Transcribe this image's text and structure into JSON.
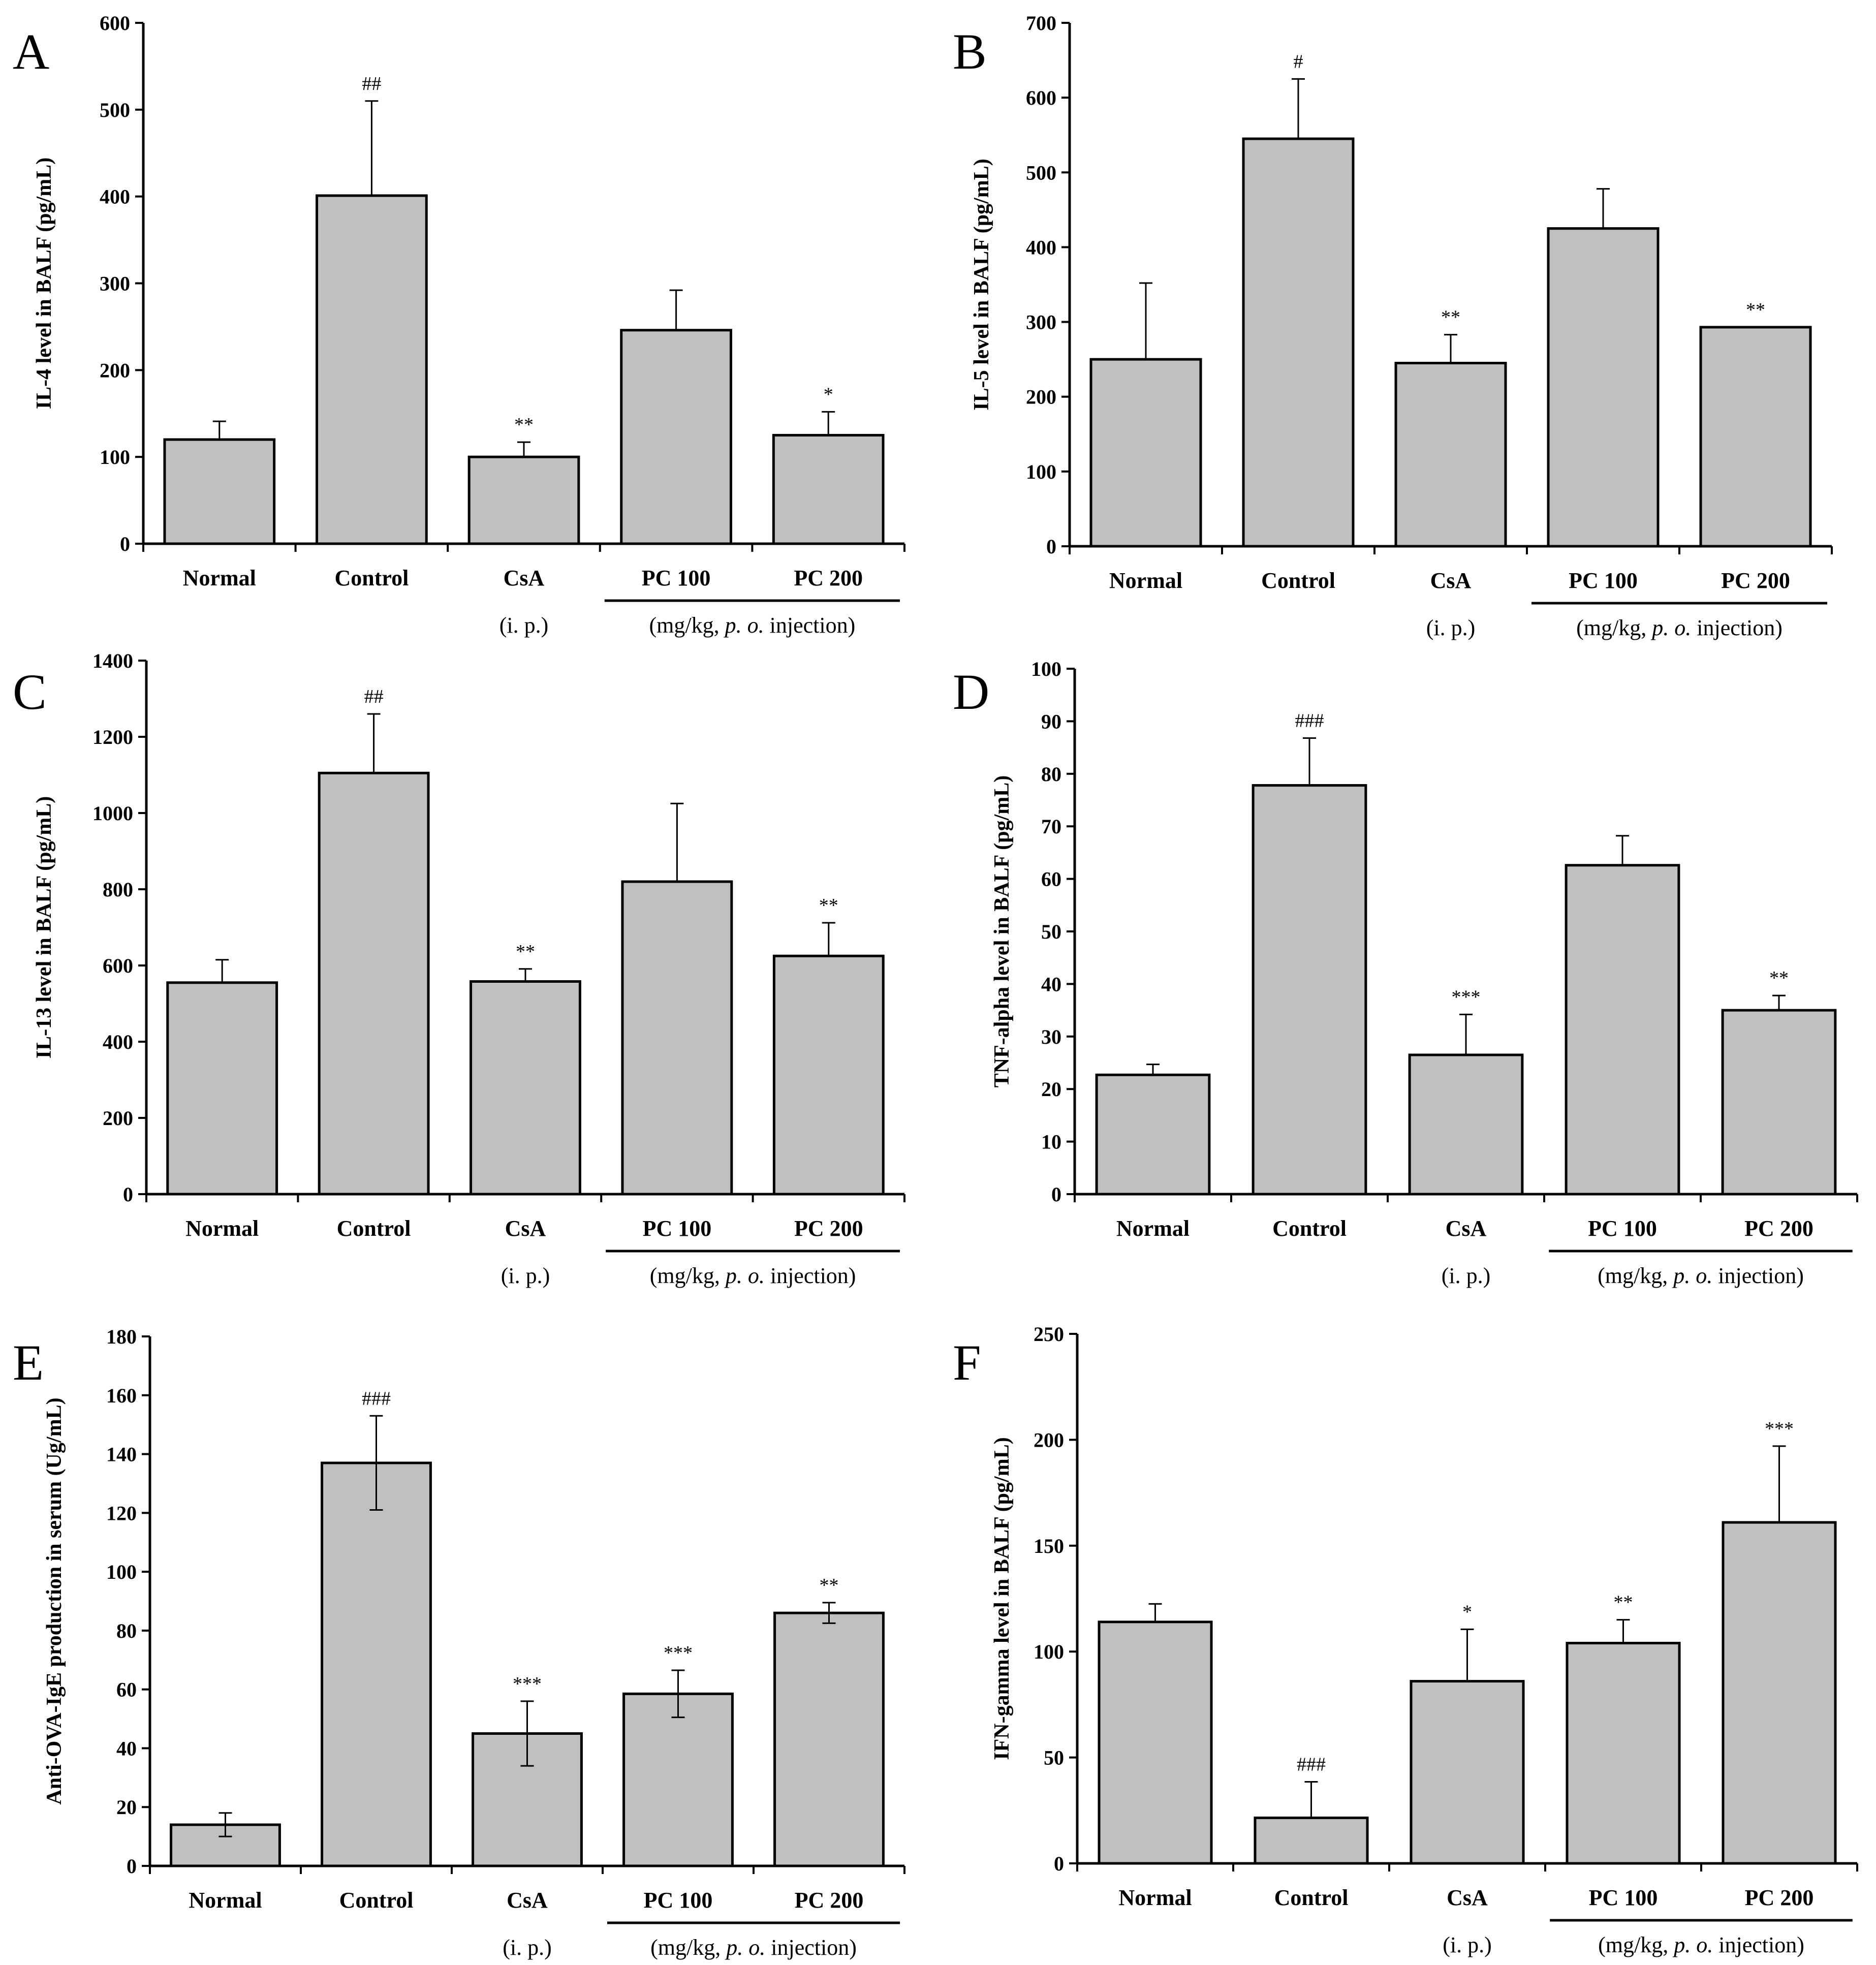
{
  "chart_data": [
    {
      "type": "bar",
      "panel": "A",
      "ylabel": "IL-4 level in BALF (pg/mL)",
      "ylim": [
        0,
        600
      ],
      "yticks": [
        0,
        100,
        200,
        300,
        400,
        500,
        600
      ],
      "categories": [
        "Normal",
        "Control",
        "CsA",
        "PC 100",
        "PC 200"
      ],
      "values": [
        120,
        401,
        100,
        246,
        125
      ],
      "errors": [
        21,
        109,
        17,
        46,
        27
      ],
      "significance": [
        "",
        "##",
        "**",
        "",
        "*"
      ],
      "group_notes": {
        "csa": "(i. p.)",
        "pc_prefix": "(mg/kg, ",
        "pc_italic": "p. o.",
        "pc_suffix": " injection)"
      },
      "bar_color": "#c0c0c0"
    },
    {
      "type": "bar",
      "panel": "B",
      "ylabel": "IL-5 level in BALF  (pg/mL)",
      "ylim": [
        0,
        700
      ],
      "yticks": [
        0,
        100,
        200,
        300,
        400,
        500,
        600,
        700
      ],
      "categories": [
        "Normal",
        "Control",
        "CsA",
        "PC 100",
        "PC 200"
      ],
      "values": [
        250,
        545,
        245,
        425,
        293
      ],
      "errors": [
        102,
        80,
        38,
        53,
        0
      ],
      "significance": [
        "",
        "#",
        "**",
        "",
        "**"
      ],
      "group_notes": {
        "csa": "(i. p.)",
        "pc_prefix": "(mg/kg, ",
        "pc_italic": "p. o.",
        "pc_suffix": " injection)"
      },
      "bar_color": "#c0c0c0"
    },
    {
      "type": "bar",
      "panel": "C",
      "ylabel": "IL-13 level in BALF (pg/mL)",
      "ylim": [
        0,
        1400
      ],
      "yticks": [
        0,
        200,
        400,
        600,
        800,
        1000,
        1200,
        1400
      ],
      "categories": [
        "Normal",
        "Control",
        "CsA",
        "PC 100",
        "PC 200"
      ],
      "values": [
        555,
        1105,
        558,
        820,
        625
      ],
      "errors": [
        60,
        155,
        33,
        205,
        87
      ],
      "significance": [
        "",
        "##",
        "**",
        "",
        "**"
      ],
      "group_notes": {
        "csa": "(i. p.)",
        "pc_prefix": "(mg/kg, ",
        "pc_italic": "p. o.",
        "pc_suffix": " injection)"
      },
      "bar_color": "#c0c0c0"
    },
    {
      "type": "bar",
      "panel": "D",
      "ylabel": "TNF-alpha level in BALF (pg/mL)",
      "ylim": [
        0,
        100
      ],
      "yticks": [
        0,
        10,
        20,
        30,
        40,
        50,
        60,
        70,
        80,
        90,
        100
      ],
      "categories": [
        "Normal",
        "Control",
        "CsA",
        "PC 100",
        "PC 200"
      ],
      "values": [
        22.7,
        77.8,
        26.5,
        62.6,
        35
      ],
      "errors": [
        2,
        9,
        7.7,
        5.6,
        2.8
      ],
      "significance": [
        "",
        "###",
        "***",
        "",
        "**"
      ],
      "group_notes": {
        "csa": "(i. p.)",
        "pc_prefix": "(mg/kg, ",
        "pc_italic": "p. o.",
        "pc_suffix": " injection)"
      },
      "bar_color": "#c0c0c0"
    },
    {
      "type": "bar",
      "panel": "E",
      "ylabel": "Anti-OVA-IgE production in serum (Ug/mL)",
      "ylim": [
        0,
        180
      ],
      "yticks": [
        0,
        20,
        40,
        60,
        80,
        100,
        120,
        140,
        160,
        180
      ],
      "categories": [
        "Normal",
        "Control",
        "CsA",
        "PC 100",
        "PC 200"
      ],
      "values": [
        14,
        137,
        45,
        58.5,
        86
      ],
      "errors": [
        4,
        16,
        11,
        8,
        3.5
      ],
      "errors_both": true,
      "significance": [
        "",
        "###",
        "***",
        "***",
        "**"
      ],
      "group_notes": {
        "csa": "(i. p.)",
        "pc_prefix": "(mg/kg, ",
        "pc_italic": "p. o.",
        "pc_suffix": " injection)"
      },
      "bar_color": "#c0c0c0"
    },
    {
      "type": "bar",
      "panel": "F",
      "ylabel": "IFN-gamma level in BALF (pg/mL)",
      "ylim": [
        0,
        250
      ],
      "yticks": [
        0,
        50,
        100,
        150,
        200,
        250
      ],
      "categories": [
        "Normal",
        "Control",
        "CsA",
        "PC 100",
        "PC 200"
      ],
      "values": [
        114,
        21.5,
        86,
        104,
        161
      ],
      "errors": [
        8.5,
        17,
        24.5,
        11,
        36
      ],
      "significance": [
        "",
        "###",
        "*",
        "**",
        "***"
      ],
      "significance_below": [
        false,
        true,
        false,
        false,
        false
      ],
      "group_notes": {
        "csa": "(i. p.)",
        "pc_prefix": "(mg/kg, ",
        "pc_italic": "p. o.",
        "pc_suffix": " injection)"
      },
      "bar_color": "#c0c0c0"
    }
  ]
}
